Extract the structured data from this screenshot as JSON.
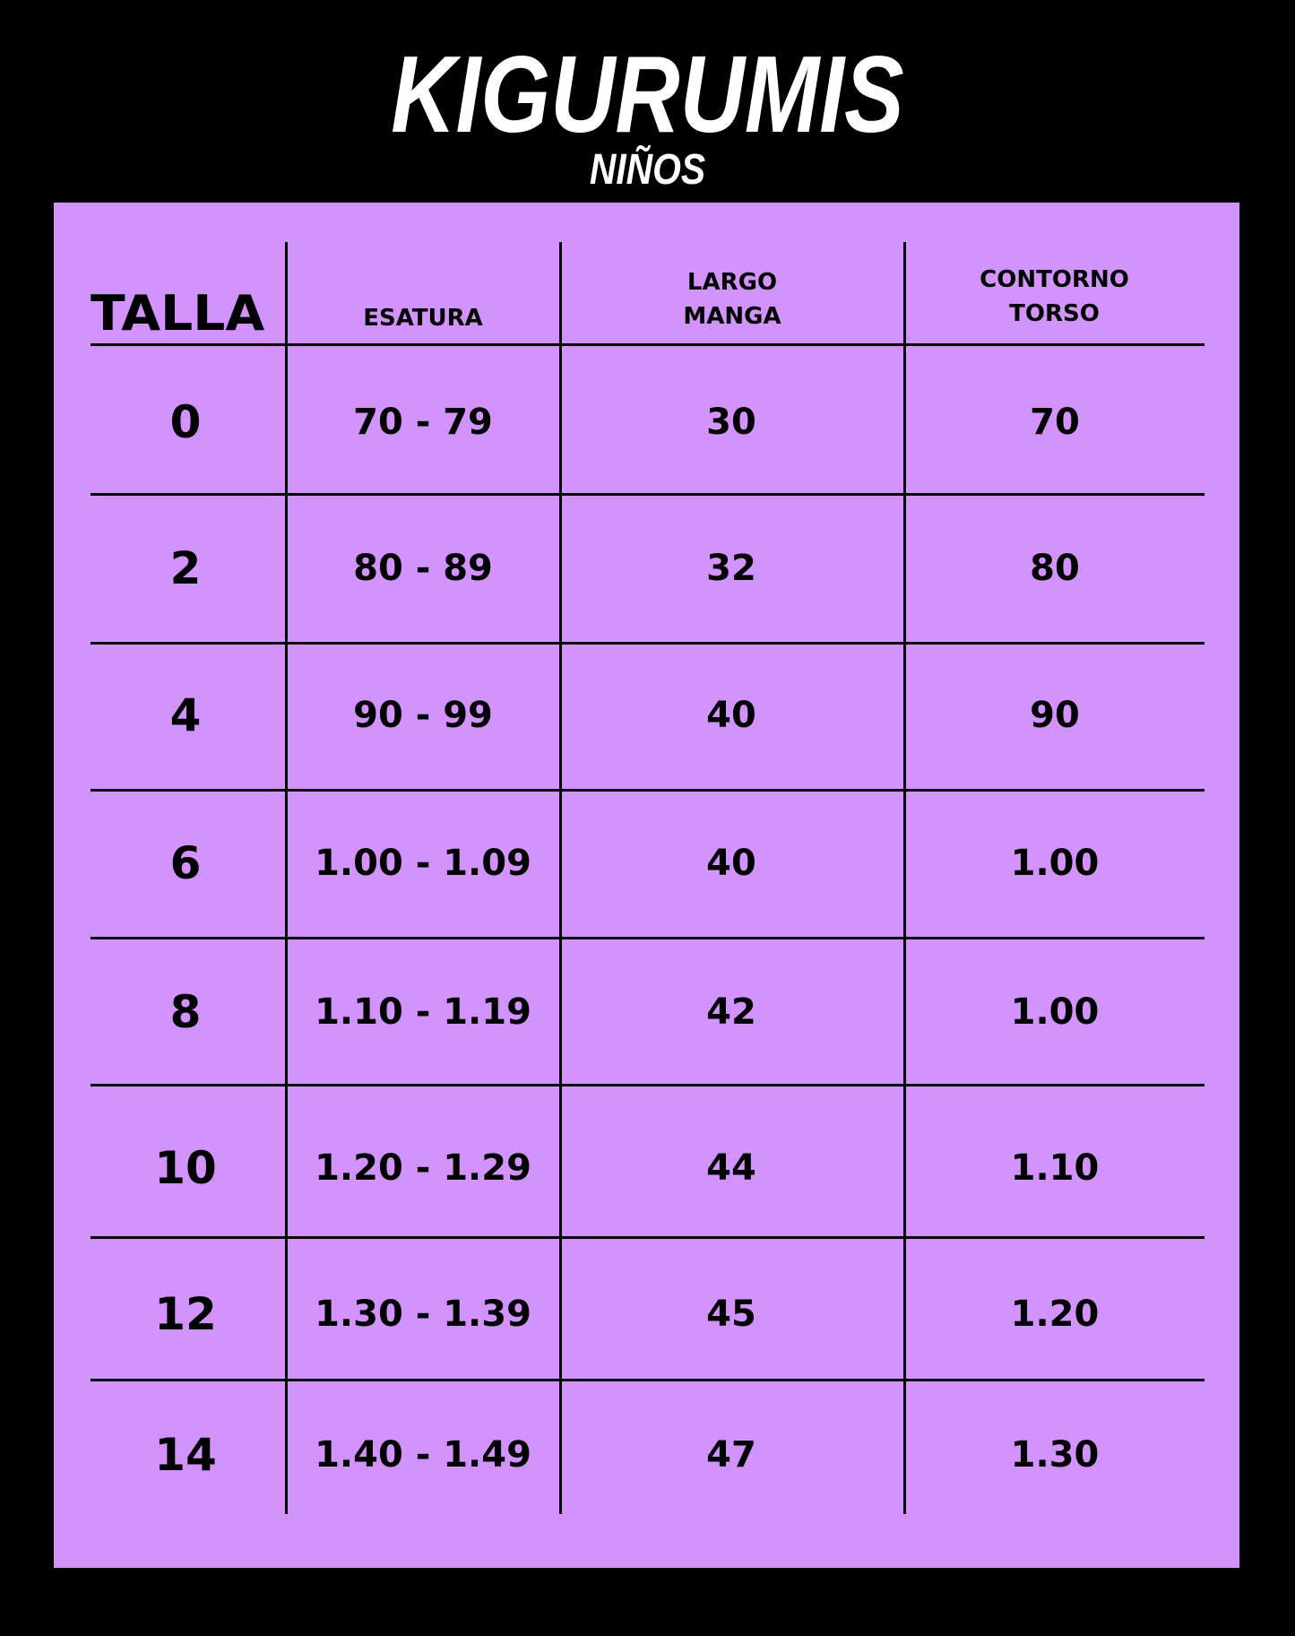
{
  "title": "KIGURUMIS",
  "subtitle": "NIÑOS",
  "colors": {
    "background": "#000000",
    "panel": "#D293FC",
    "text": "#000000",
    "title": "#FFFFFF"
  },
  "table": {
    "headers": [
      "TALLA",
      "ESATURA",
      "LARGO\nMANGA",
      "CONTORNO\nTORSO"
    ],
    "header_lines": {
      "largo": [
        "LARGO",
        "MANGA"
      ],
      "contorno": [
        "CONTORNO",
        "TORSO"
      ]
    },
    "rows": [
      [
        "0",
        "70 - 79",
        "30",
        "70"
      ],
      [
        "2",
        "80 - 89",
        "32",
        "80"
      ],
      [
        "4",
        "90 - 99",
        "40",
        "90"
      ],
      [
        "6",
        "1.00 - 1.09",
        "40",
        "1.00"
      ],
      [
        "8",
        "1.10 - 1.19",
        "42",
        "1.00"
      ],
      [
        "10",
        "1.20 - 1.29",
        "44",
        "1.10"
      ],
      [
        "12",
        "1.30 - 1.39",
        "45",
        "1.20"
      ],
      [
        "14",
        "1.40 - 1.49",
        "47",
        "1.30"
      ]
    ]
  }
}
